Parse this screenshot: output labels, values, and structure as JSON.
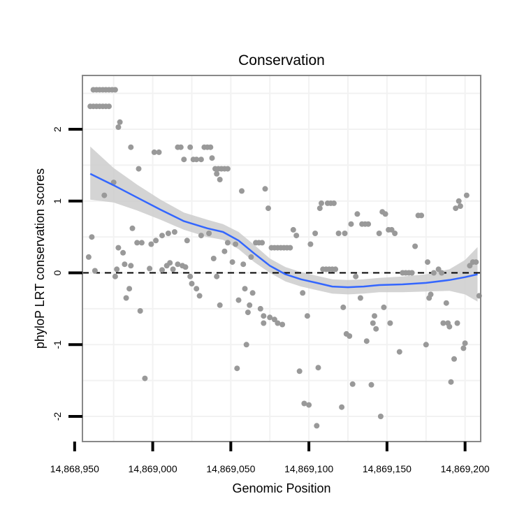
{
  "chart_data": {
    "type": "scatter",
    "title": "Conservation",
    "xlabel": "Genomic Position",
    "ylabel": "phyloP LRT conservation scores",
    "xlim": [
      14868955,
      14869210
    ],
    "ylim": [
      -2.35,
      2.75
    ],
    "x_ticks": [
      14868950,
      14869000,
      14869050,
      14869100,
      14869150,
      14869200
    ],
    "x_tick_labels": [
      "14,868,950",
      "14,869,000",
      "14,869,050",
      "14,869,100",
      "14,869,150",
      "14,869,200"
    ],
    "y_ticks": [
      -2,
      -1,
      0,
      1,
      2
    ],
    "y_tick_labels": [
      "-2",
      "-1",
      "0",
      "1",
      "2"
    ],
    "grid": true,
    "reference_line": {
      "y": 0,
      "style": "dashed",
      "color": "#000000"
    },
    "colors": {
      "points": "#999999",
      "smooth": "#3366ff",
      "band": "#cccccc",
      "panel_border": "#888888",
      "grid": "#f2f2f2"
    },
    "smooth": {
      "x": [
        14868960,
        14868975,
        14868990,
        14869005,
        14869020,
        14869035,
        14869045,
        14869055,
        14869065,
        14869075,
        14869085,
        14869095,
        14869105,
        14869115,
        14869125,
        14869135,
        14869145,
        14869160,
        14869175,
        14869190,
        14869200,
        14869208
      ],
      "y": [
        1.38,
        1.22,
        1.05,
        0.88,
        0.72,
        0.62,
        0.57,
        0.45,
        0.27,
        0.1,
        -0.02,
        -0.09,
        -0.14,
        -0.19,
        -0.2,
        -0.19,
        -0.17,
        -0.16,
        -0.14,
        -0.1,
        -0.06,
        -0.02
      ],
      "lower": [
        1.02,
        0.98,
        0.87,
        0.74,
        0.6,
        0.5,
        0.46,
        0.33,
        0.15,
        0.0,
        -0.12,
        -0.19,
        -0.24,
        -0.29,
        -0.3,
        -0.29,
        -0.27,
        -0.27,
        -0.26,
        -0.25,
        -0.3,
        -0.4
      ],
      "upper": [
        1.76,
        1.46,
        1.23,
        1.02,
        0.84,
        0.74,
        0.68,
        0.57,
        0.39,
        0.2,
        0.08,
        0.01,
        -0.04,
        -0.09,
        -0.1,
        -0.09,
        -0.07,
        -0.05,
        -0.02,
        0.05,
        0.18,
        0.36
      ]
    },
    "points": [
      [
        14868962,
        2.55
      ],
      [
        14868964,
        2.55
      ],
      [
        14868966,
        2.55
      ],
      [
        14868968,
        2.55
      ],
      [
        14868970,
        2.55
      ],
      [
        14868972,
        2.55
      ],
      [
        14868974,
        2.55
      ],
      [
        14868976,
        2.55
      ],
      [
        14868960,
        2.32
      ],
      [
        14868962,
        2.32
      ],
      [
        14868964,
        2.32
      ],
      [
        14868966,
        2.32
      ],
      [
        14868968,
        2.32
      ],
      [
        14868970,
        2.32
      ],
      [
        14868972,
        2.32
      ],
      [
        14868979,
        2.1
      ],
      [
        14868978,
        2.03
      ],
      [
        14868986,
        1.75
      ],
      [
        14869001,
        1.68
      ],
      [
        14869004,
        1.68
      ],
      [
        14868991,
        1.45
      ],
      [
        14868975,
        1.26
      ],
      [
        14868969,
        1.08
      ],
      [
        14868961,
        0.5
      ],
      [
        14868959,
        0.22
      ],
      [
        14868963,
        0.03
      ],
      [
        14868978,
        0.35
      ],
      [
        14868981,
        0.28
      ],
      [
        14868977,
        0.05
      ],
      [
        14868976,
        -0.05
      ],
      [
        14868986,
        0.1
      ],
      [
        14868990,
        0.42
      ],
      [
        14868993,
        0.42
      ],
      [
        14868987,
        0.62
      ],
      [
        14868982,
        0.12
      ],
      [
        14868985,
        -0.22
      ],
      [
        14868983,
        -0.35
      ],
      [
        14868992,
        -0.53
      ],
      [
        14868995,
        -1.47
      ],
      [
        14868998,
        0.06
      ],
      [
        14869002,
        0.45
      ],
      [
        14868999,
        0.4
      ],
      [
        14869006,
        0.52
      ],
      [
        14869010,
        0.55
      ],
      [
        14869014,
        0.57
      ],
      [
        14869016,
        1.75
      ],
      [
        14869018,
        1.75
      ],
      [
        14869020,
        1.58
      ],
      [
        14869024,
        1.75
      ],
      [
        14869026,
        1.58
      ],
      [
        14869028,
        1.58
      ],
      [
        14869031,
        1.58
      ],
      [
        14869033,
        1.75
      ],
      [
        14869035,
        1.75
      ],
      [
        14869037,
        1.75
      ],
      [
        14869038,
        1.6
      ],
      [
        14869040,
        1.45
      ],
      [
        14869042,
        1.45
      ],
      [
        14869044,
        1.45
      ],
      [
        14869046,
        1.45
      ],
      [
        14869048,
        1.45
      ],
      [
        14869041,
        1.38
      ],
      [
        14869043,
        1.3
      ],
      [
        14869006,
        0.04
      ],
      [
        14869009,
        0.1
      ],
      [
        14869011,
        0.14
      ],
      [
        14869013,
        0.05
      ],
      [
        14869016,
        0.12
      ],
      [
        14869019,
        0.1
      ],
      [
        14869021,
        0.08
      ],
      [
        14869024,
        -0.05
      ],
      [
        14869025,
        -0.15
      ],
      [
        14869028,
        -0.22
      ],
      [
        14869030,
        -0.32
      ],
      [
        14869022,
        0.45
      ],
      [
        14869031,
        0.52
      ],
      [
        14869036,
        0.55
      ],
      [
        14869039,
        0.2
      ],
      [
        14869041,
        -0.05
      ],
      [
        14869043,
        -0.45
      ],
      [
        14869046,
        0.3
      ],
      [
        14869048,
        0.42
      ],
      [
        14869051,
        0.15
      ],
      [
        14869053,
        0.4
      ],
      [
        14869054,
        -1.33
      ],
      [
        14869055,
        -0.38
      ],
      [
        14869057,
        1.14
      ],
      [
        14869058,
        0.12
      ],
      [
        14869059,
        -0.22
      ],
      [
        14869060,
        -1.0
      ],
      [
        14869061,
        -0.55
      ],
      [
        14869062,
        -0.45
      ],
      [
        14869063,
        0.22
      ],
      [
        14869064,
        -0.28
      ],
      [
        14869066,
        0.42
      ],
      [
        14869068,
        0.42
      ],
      [
        14869070,
        0.42
      ],
      [
        14869069,
        -0.5
      ],
      [
        14869071,
        -0.6
      ],
      [
        14869072,
        1.17
      ],
      [
        14869074,
        0.9
      ],
      [
        14869076,
        0.35
      ],
      [
        14869078,
        0.35
      ],
      [
        14869080,
        0.35
      ],
      [
        14869082,
        0.35
      ],
      [
        14869084,
        0.35
      ],
      [
        14869086,
        0.35
      ],
      [
        14869088,
        0.35
      ],
      [
        14869071,
        -0.7
      ],
      [
        14869075,
        -0.62
      ],
      [
        14869078,
        -0.65
      ],
      [
        14869080,
        -0.7
      ],
      [
        14869083,
        -0.72
      ],
      [
        14869090,
        0.6
      ],
      [
        14869092,
        0.52
      ],
      [
        14869094,
        -1.37
      ],
      [
        14869096,
        -0.28
      ],
      [
        14869097,
        -1.82
      ],
      [
        14869099,
        -0.6
      ],
      [
        14869100,
        -1.84
      ],
      [
        14869101,
        0.4
      ],
      [
        14869104,
        0.55
      ],
      [
        14869105,
        -2.13
      ],
      [
        14869106,
        -1.32
      ],
      [
        14869107,
        0.9
      ],
      [
        14869108,
        0.97
      ],
      [
        14869109,
        0.05
      ],
      [
        14869111,
        0.05
      ],
      [
        14869112,
        0.97
      ],
      [
        14869114,
        0.97
      ],
      [
        14869116,
        0.97
      ],
      [
        14869113,
        0.05
      ],
      [
        14869115,
        0.05
      ],
      [
        14869117,
        0.05
      ],
      [
        14869119,
        0.55
      ],
      [
        14869121,
        -1.87
      ],
      [
        14869122,
        -0.48
      ],
      [
        14869123,
        0.55
      ],
      [
        14869124,
        -0.85
      ],
      [
        14869126,
        -0.88
      ],
      [
        14869127,
        0.68
      ],
      [
        14869128,
        -1.55
      ],
      [
        14869130,
        -0.05
      ],
      [
        14869131,
        0.82
      ],
      [
        14869133,
        -0.35
      ],
      [
        14869134,
        0.68
      ],
      [
        14869136,
        0.68
      ],
      [
        14869138,
        0.68
      ],
      [
        14869137,
        -0.95
      ],
      [
        14869140,
        -1.56
      ],
      [
        14869141,
        -0.7
      ],
      [
        14869142,
        -0.6
      ],
      [
        14869143,
        -0.78
      ],
      [
        14869145,
        0.55
      ],
      [
        14869146,
        -2.0
      ],
      [
        14869147,
        0.85
      ],
      [
        14869148,
        -0.48
      ],
      [
        14869149,
        0.82
      ],
      [
        14869151,
        0.6
      ],
      [
        14869153,
        0.6
      ],
      [
        14869155,
        0.55
      ],
      [
        14869152,
        -0.7
      ],
      [
        14869158,
        -1.1
      ],
      [
        14869160,
        0.0
      ],
      [
        14869162,
        0.0
      ],
      [
        14869164,
        0.0
      ],
      [
        14869166,
        0.0
      ],
      [
        14869168,
        0.37
      ],
      [
        14869170,
        0.8
      ],
      [
        14869172,
        0.8
      ],
      [
        14869175,
        -1.0
      ],
      [
        14869176,
        0.15
      ],
      [
        14869177,
        -0.35
      ],
      [
        14869178,
        -0.3
      ],
      [
        14869180,
        0.0
      ],
      [
        14869183,
        0.05
      ],
      [
        14869185,
        0.0
      ],
      [
        14869186,
        -0.7
      ],
      [
        14869188,
        -0.42
      ],
      [
        14869189,
        -0.7
      ],
      [
        14869190,
        -0.75
      ],
      [
        14869191,
        -1.52
      ],
      [
        14869193,
        -1.2
      ],
      [
        14869194,
        0.9
      ],
      [
        14869195,
        -0.7
      ],
      [
        14869196,
        1.0
      ],
      [
        14869197,
        0.93
      ],
      [
        14869199,
        -1.05
      ],
      [
        14869200,
        -0.98
      ],
      [
        14869201,
        1.08
      ],
      [
        14869203,
        0.1
      ],
      [
        14869205,
        0.15
      ],
      [
        14869207,
        0.15
      ],
      [
        14869209,
        -0.32
      ]
    ]
  }
}
